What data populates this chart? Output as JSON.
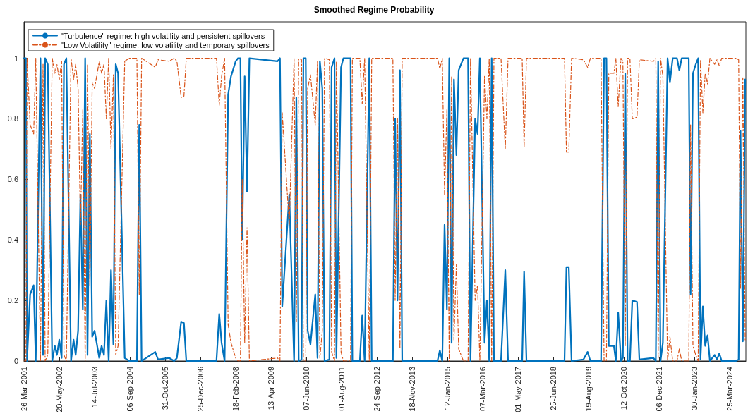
{
  "chart_data": {
    "type": "line",
    "title": "Smoothed Regime Probability",
    "x": [
      "2001-03-26",
      "2001-04-18",
      "2001-05-01",
      "2001-06-07",
      "2001-07-19",
      "2001-08-13",
      "2001-10-08",
      "2001-11-08",
      "2001-12-03",
      "2002-01-03",
      "2002-02-25",
      "2002-03-28",
      "2002-04-22",
      "2002-05-20",
      "2002-06-17",
      "2002-07-15",
      "2002-08-12",
      "2002-10-07",
      "2002-11-06",
      "2002-12-01",
      "2002-12-30",
      "2003-01-27",
      "2003-02-24",
      "2003-03-24",
      "2003-04-21",
      "2003-05-19",
      "2003-06-16",
      "2003-07-14",
      "2003-09-08",
      "2003-10-06",
      "2003-11-03",
      "2003-12-01",
      "2003-12-29",
      "2004-01-26",
      "2004-02-23",
      "2004-03-22",
      "2004-04-19",
      "2004-07-07",
      "2004-08-31",
      "2004-11-29",
      "2004-12-27",
      "2005-01-24",
      "2005-07-05",
      "2005-08-08",
      "2005-12-20",
      "2006-02-15",
      "2006-03-20",
      "2006-05-10",
      "2006-06-12",
      "2006-07-10",
      "2007-07-04",
      "2007-08-06",
      "2007-09-03",
      "2007-10-09",
      "2007-11-20",
      "2007-12-24",
      "2008-02-18",
      "2008-03-17",
      "2008-04-14",
      "2008-05-06",
      "2008-06-04",
      "2008-07-02",
      "2008-07-30",
      "2009-06-30",
      "2009-07-29",
      "2009-08-25",
      "2009-11-17",
      "2010-01-13",
      "2010-02-09",
      "2010-03-09",
      "2010-04-12",
      "2010-05-04",
      "2010-06-01",
      "2010-06-24",
      "2010-07-27",
      "2010-09-22",
      "2010-10-19",
      "2010-11-16",
      "2010-12-15",
      "2011-01-11",
      "2011-03-09",
      "2011-04-05",
      "2011-05-09",
      "2011-06-01",
      "2011-07-26",
      "2011-08-23",
      "2011-11-16",
      "2011-12-08",
      "2012-03-06",
      "2012-04-03",
      "2012-05-02",
      "2012-06-26",
      "2012-07-25",
      "2013-04-03",
      "2013-04-30",
      "2013-05-28",
      "2013-06-26",
      "2013-07-23",
      "2014-09-16",
      "2014-10-14",
      "2014-11-12",
      "2014-12-09",
      "2015-01-06",
      "2015-02-03",
      "2015-03-03",
      "2015-03-31",
      "2015-04-29",
      "2015-05-26",
      "2015-07-22",
      "2015-09-15",
      "2015-10-14",
      "2015-12-08",
      "2016-01-06",
      "2016-02-02",
      "2016-03-29",
      "2016-04-26",
      "2016-05-24",
      "2016-06-22",
      "2016-07-19",
      "2016-10-11",
      "2016-12-01",
      "2017-01-03",
      "2017-06-20",
      "2017-07-13",
      "2017-08-10",
      "2018-06-20",
      "2018-11-06",
      "2018-11-29",
      "2018-12-27",
      "2019-01-29",
      "2019-06-19",
      "2019-08-08",
      "2019-09-10",
      "2020-01-15",
      "2020-02-20",
      "2020-03-19",
      "2020-04-16",
      "2020-06-16",
      "2020-07-09",
      "2020-08-06",
      "2020-09-08",
      "2020-10-01",
      "2020-10-29",
      "2020-11-26",
      "2020-12-24",
      "2021-01-21",
      "2021-03-18",
      "2021-04-15",
      "2021-09-30",
      "2021-10-28",
      "2021-11-25",
      "2021-12-23",
      "2022-01-20",
      "2022-03-17",
      "2022-04-14",
      "2022-05-17",
      "2022-07-07",
      "2022-08-04",
      "2022-09-01",
      "2022-11-24",
      "2022-12-16",
      "2023-01-13",
      "2023-02-16",
      "2023-03-16",
      "2023-04-13",
      "2023-05-11",
      "2023-06-08",
      "2023-07-06",
      "2023-08-03",
      "2023-09-28",
      "2023-10-26",
      "2023-11-23",
      "2023-12-21",
      "2024-06-06",
      "2024-07-10",
      "2024-08-01",
      "2024-08-29",
      "2024-09-26"
    ],
    "series": [
      {
        "name": "\"Turbulence\" regime: high volatility and persistent spillovers",
        "color": "#0072bd",
        "line_style": "solid",
        "values": [
          1,
          1,
          0,
          0.22,
          0.25,
          0,
          1,
          0.02,
          1,
          0.98,
          0,
          0.05,
          0.02,
          0.07,
          0.01,
          0.98,
          1,
          0,
          0.07,
          0.02,
          0.1,
          0.55,
          0.17,
          1,
          0.02,
          0.75,
          0.08,
          0.1,
          0.01,
          0.05,
          0.02,
          0.2,
          0,
          0.3,
          0.055,
          0.98,
          0.95,
          0.01,
          0,
          0,
          0.78,
          0,
          0.03,
          0.005,
          0.01,
          0,
          0.01,
          0.13,
          0.125,
          0,
          0,
          0.155,
          0.06,
          0,
          0.88,
          0.94,
          0.99,
          1,
          1,
          0.4,
          0.94,
          0.56,
          1,
          0.99,
          1,
          0.18,
          0.55,
          0,
          0.87,
          0,
          0.005,
          1,
          1,
          0.1,
          0.055,
          0.22,
          0.01,
          0.99,
          0.9,
          0,
          0.005,
          0.97,
          1,
          0.01,
          0.97,
          1,
          1,
          0,
          0,
          0.15,
          0,
          1,
          0,
          0,
          0.8,
          0.2,
          0.96,
          0,
          0,
          0.035,
          0,
          0.45,
          0.17,
          1,
          0.06,
          0.93,
          0.68,
          0.96,
          1,
          1,
          0,
          0.8,
          0.75,
          1,
          0.06,
          0.2,
          0,
          1,
          0,
          0,
          0.3,
          0,
          0,
          0.295,
          0,
          0,
          0,
          0.31,
          0.31,
          0,
          0.005,
          0.03,
          0,
          0,
          1,
          1,
          0.05,
          0.05,
          0,
          0.16,
          0,
          0.01,
          0.95,
          0,
          0,
          0.2,
          0.195,
          0.005,
          0.01,
          0,
          0.99,
          0,
          0.06,
          1,
          0.92,
          1,
          1,
          0.96,
          1,
          1,
          0.22,
          0.95,
          0.98,
          1,
          0.005,
          0.18,
          0.05,
          0.085,
          0,
          0.02,
          0.005,
          0.025,
          0,
          0,
          0.005,
          0.76,
          0.065,
          0.93
        ]
      },
      {
        "name": "\"Low Volatility\" regime: low volatility and temporary spillovers",
        "color": "#d95319",
        "line_style": "dashed",
        "values": [
          0,
          0,
          1,
          0.78,
          0.75,
          1,
          0,
          0.98,
          0,
          0.02,
          1,
          0.95,
          0.98,
          0.93,
          0.99,
          0.02,
          0,
          1,
          0.93,
          0.98,
          0.9,
          0.45,
          0.83,
          0,
          0.98,
          0.25,
          0.92,
          0.9,
          0.99,
          0.95,
          0.98,
          0.8,
          1,
          0.7,
          0.945,
          0.02,
          0.05,
          0.99,
          1,
          1,
          0.22,
          1,
          0.97,
          0.995,
          0.99,
          1,
          0.99,
          0.87,
          0.875,
          1,
          1,
          0.845,
          0.94,
          1,
          0.12,
          0.06,
          0.01,
          0,
          0,
          0.6,
          0.06,
          0.44,
          0,
          0.01,
          0,
          0.82,
          0.45,
          1,
          0.13,
          1,
          0.995,
          0,
          0,
          0.9,
          0.945,
          0.78,
          0.99,
          0.01,
          0.1,
          1,
          0.995,
          0.03,
          0,
          0.99,
          0.03,
          0,
          0,
          1,
          1,
          0.85,
          1,
          0,
          1,
          1,
          0.2,
          0.8,
          0.04,
          1,
          1,
          0.965,
          1,
          0.55,
          0.83,
          0,
          0.94,
          0.07,
          0.32,
          0.04,
          0,
          0,
          1,
          0.2,
          0.25,
          0,
          0.94,
          0.8,
          1,
          0,
          1,
          1,
          0.7,
          1,
          1,
          0.705,
          1,
          1,
          1,
          0.69,
          0.69,
          1,
          0.995,
          0.97,
          1,
          1,
          0,
          0,
          0.95,
          0.95,
          1,
          0.84,
          1,
          0.99,
          0.05,
          1,
          1,
          0.8,
          0.805,
          0.995,
          0.99,
          1,
          0.01,
          1,
          0.94,
          0,
          0.08,
          0,
          0,
          0.04,
          0,
          0,
          0.78,
          0.05,
          0.02,
          0,
          0.995,
          0.82,
          0.95,
          0.915,
          1,
          0.98,
          0.995,
          0.975,
          1,
          1,
          0.995,
          0.24,
          0.935,
          0.07
        ]
      }
    ],
    "xlim": [
      "2001-03-26",
      "2024-10-04"
    ],
    "xticks": [
      {
        "value": "2001-03-26",
        "label": "26-Mar-2001"
      },
      {
        "value": "2002-05-20",
        "label": "20-May-2002"
      },
      {
        "value": "2003-07-14",
        "label": "14-Jul-2003"
      },
      {
        "value": "2004-09-06",
        "label": "06-Sep-2004"
      },
      {
        "value": "2005-10-31",
        "label": "31-Oct-2005"
      },
      {
        "value": "2006-12-25",
        "label": "25-Dec-2006"
      },
      {
        "value": "2008-02-18",
        "label": "18-Feb-2008"
      },
      {
        "value": "2009-04-13",
        "label": "13-Apr-2009"
      },
      {
        "value": "2010-06-07",
        "label": "07-Jun-2010"
      },
      {
        "value": "2011-08-01",
        "label": "01-Aug-2011"
      },
      {
        "value": "2012-09-24",
        "label": "24-Sep-2012"
      },
      {
        "value": "2013-11-18",
        "label": "18-Nov-2013"
      },
      {
        "value": "2015-01-12",
        "label": "12-Jan-2015"
      },
      {
        "value": "2016-03-07",
        "label": "07-Mar-2016"
      },
      {
        "value": "2017-05-01",
        "label": "01-May-2017"
      },
      {
        "value": "2018-06-25",
        "label": "25-Jun-2018"
      },
      {
        "value": "2019-08-19",
        "label": "19-Aug-2019"
      },
      {
        "value": "2020-10-12",
        "label": "12-Oct-2020"
      },
      {
        "value": "2021-12-06",
        "label": "06-Dec-2021"
      },
      {
        "value": "2023-01-30",
        "label": "30-Jan-2023"
      },
      {
        "value": "2024-03-25",
        "label": "25-Mar-2024"
      }
    ],
    "ylim": [
      0,
      1.12
    ],
    "yticks": [
      0,
      0.2,
      0.4,
      0.6,
      0.8,
      1
    ],
    "grid": false,
    "legend": "top left",
    "marker": "none"
  }
}
